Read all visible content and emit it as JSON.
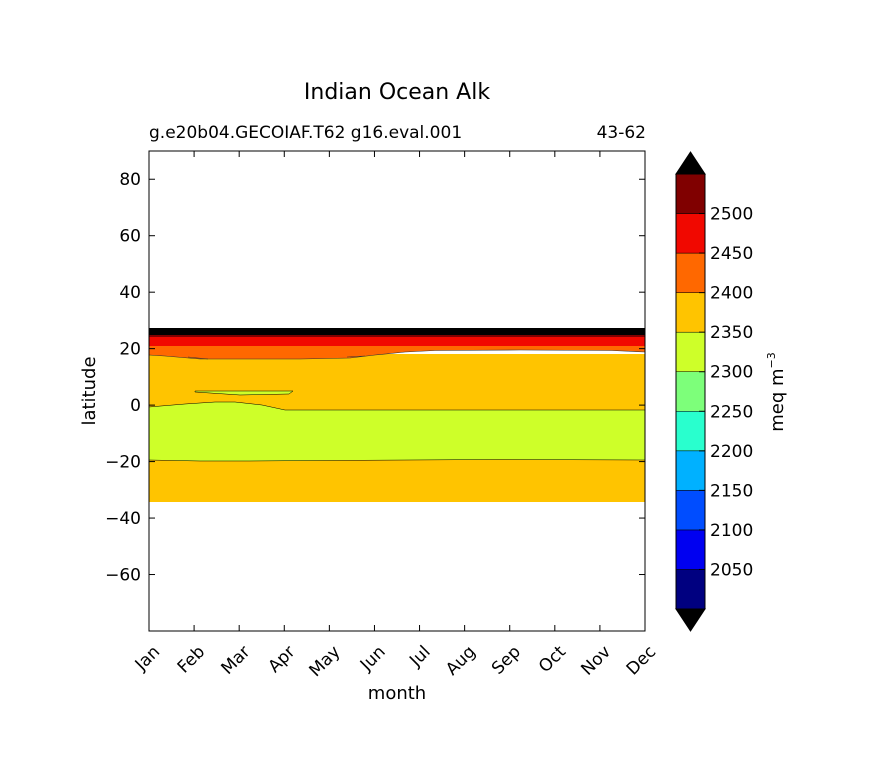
{
  "chart_data": {
    "type": "heatmap",
    "title": "Indian Ocean Alk",
    "subtitle_left": "g.e20b04.GECOIAF.T62 g16.eval.001",
    "subtitle_right": "43-62",
    "xlabel": "month",
    "ylabel": "latitude",
    "x_categories": [
      "Jan",
      "Feb",
      "Mar",
      "Apr",
      "May",
      "Jun",
      "Jul",
      "Aug",
      "Sep",
      "Oct",
      "Nov",
      "Dec"
    ],
    "ylim": [
      -80,
      90
    ],
    "yticks": [
      80,
      60,
      40,
      20,
      0,
      -20,
      -40,
      -60
    ],
    "colorbar": {
      "label": "meq m",
      "label_exponent": "−3",
      "levels": [
        2000,
        2050,
        2100,
        2150,
        2200,
        2250,
        2300,
        2350,
        2400,
        2450,
        2500,
        2550
      ],
      "tick_labels": [
        "2050",
        "2100",
        "2150",
        "2200",
        "2250",
        "2300",
        "2350",
        "2400",
        "2450",
        "2500"
      ],
      "colors": [
        "#000080",
        "#0000f1",
        "#004dff",
        "#00b1ff",
        "#29ffce",
        "#7dff7a",
        "#ceff29",
        "#ffc400",
        "#ff6800",
        "#f10800",
        "#800000"
      ],
      "extend_colors": {
        "under": "#000000",
        "over": "#000000"
      }
    },
    "regions": [
      {
        "level": "2350-2400",
        "color": "#ffc400",
        "lat_range": [
          -34,
          18.5
        ],
        "note": "southern and tropical band"
      },
      {
        "level": "2300-2350",
        "color": "#ceff29",
        "lat_range": [
          -19.5,
          0.5
        ],
        "note": "equatorial low-alkalinity band"
      },
      {
        "level": "2300-2350",
        "color": "#ceff29",
        "lat_range": [
          4,
          6
        ],
        "month_range": [
          "Feb",
          "Apr"
        ],
        "note": "small patch"
      },
      {
        "level": "2400-2450",
        "color": "#ff6800",
        "lat_range": [
          17,
          22
        ]
      },
      {
        "level": "2450-2500",
        "color": "#f10800",
        "lat_range": [
          22,
          24.5
        ]
      },
      {
        "level": "2500-2550",
        "color": "#800000",
        "lat_range": [
          24.5,
          25.5
        ]
      },
      {
        "level": ">2550",
        "color": "#000000",
        "lat_range": [
          25.5,
          27.5
        ]
      }
    ],
    "grid": false,
    "colorbar_position": "right"
  }
}
